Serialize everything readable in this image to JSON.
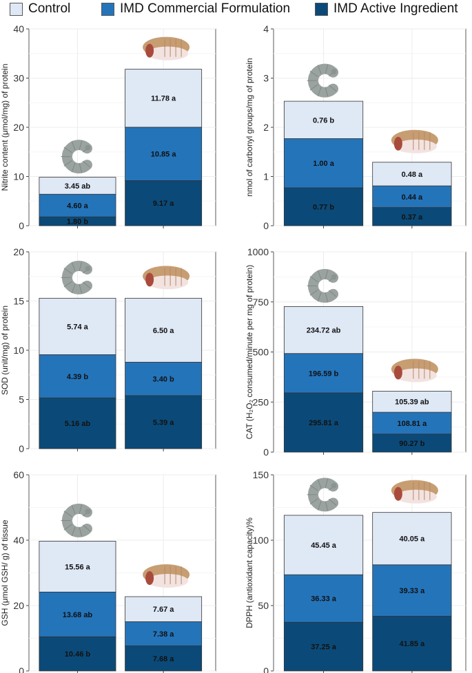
{
  "legend": {
    "items": [
      {
        "label": "Control",
        "color": "#dfe8f5"
      },
      {
        "label": "IMD Commercial Formulation",
        "color": "#2474ba"
      },
      {
        "label": "IMD Active Ingredient",
        "color": "#0b4a78"
      }
    ]
  },
  "chart_data": [
    {
      "type": "bar",
      "stacked": true,
      "ylabel": "Nitrite content (μmol/mg) of protein",
      "ylim": [
        0,
        40
      ],
      "yticks": [
        0,
        10,
        20,
        30,
        40
      ],
      "categories": [
        "larva",
        "pupa"
      ],
      "icons": [
        "larva-icon",
        "pupa-icon"
      ],
      "series": [
        {
          "name": "IMD Active Ingredient",
          "values": [
            1.8,
            9.17
          ],
          "labels": [
            "1.80 b",
            "9.17 a"
          ]
        },
        {
          "name": "IMD Commercial Formulation",
          "values": [
            4.6,
            10.85
          ],
          "labels": [
            "4.60 a",
            "10.85 a"
          ]
        },
        {
          "name": "Control",
          "values": [
            3.45,
            11.78
          ],
          "labels": [
            "3.45 ab",
            "11.78 a"
          ]
        }
      ]
    },
    {
      "type": "bar",
      "stacked": true,
      "ylabel": "nmol of carbonyl groups/mg of protein",
      "ylim": [
        0,
        4
      ],
      "yticks": [
        0,
        1,
        2,
        3,
        4
      ],
      "categories": [
        "larva",
        "pupa"
      ],
      "icons": [
        "larva-icon",
        "pupa-icon"
      ],
      "series": [
        {
          "name": "IMD Active Ingredient",
          "values": [
            0.77,
            0.37
          ],
          "labels": [
            "0.77 b",
            "0.37 a"
          ]
        },
        {
          "name": "IMD Commercial Formulation",
          "values": [
            1.0,
            0.44
          ],
          "labels": [
            "1.00 a",
            "0.44 a"
          ]
        },
        {
          "name": "Control",
          "values": [
            0.76,
            0.48
          ],
          "labels": [
            "0.76 b",
            "0.48 a"
          ]
        }
      ]
    },
    {
      "type": "bar",
      "stacked": true,
      "ylabel": "SOD (unit/mg) of protein",
      "ylim": [
        0,
        20
      ],
      "yticks": [
        0,
        5,
        10,
        15,
        20
      ],
      "categories": [
        "larva",
        "pupa"
      ],
      "icons": [
        "larva-icon",
        "pupa-icon"
      ],
      "series": [
        {
          "name": "IMD Active Ingredient",
          "values": [
            5.16,
            5.39
          ],
          "labels": [
            "5.16 ab",
            "5.39 a"
          ]
        },
        {
          "name": "IMD Commercial Formulation",
          "values": [
            4.39,
            3.4
          ],
          "labels": [
            "4.39 b",
            "3.40 b"
          ]
        },
        {
          "name": "Control",
          "values": [
            5.74,
            6.5
          ],
          "labels": [
            "5.74 a",
            "6.50 a"
          ]
        }
      ]
    },
    {
      "type": "bar",
      "stacked": true,
      "ylabel": "CAT (H₂O₂ consumed/minute per mg of protein)",
      "ylim": [
        0,
        1000
      ],
      "yticks": [
        0,
        250,
        500,
        750,
        1000
      ],
      "categories": [
        "larva",
        "pupa"
      ],
      "icons": [
        "larva-icon",
        "pupa-icon"
      ],
      "series": [
        {
          "name": "IMD Active Ingredient",
          "values": [
            295.81,
            90.27
          ],
          "labels": [
            "295.81 a",
            "90.27 b"
          ]
        },
        {
          "name": "IMD Commercial Formulation",
          "values": [
            196.59,
            108.81
          ],
          "labels": [
            "196.59 b",
            "108.81 a"
          ]
        },
        {
          "name": "Control",
          "values": [
            234.72,
            105.39
          ],
          "labels": [
            "234.72 ab",
            "105.39 ab"
          ]
        }
      ]
    },
    {
      "type": "bar",
      "stacked": true,
      "ylabel": "GSH (μmol GSH/ g) of tissue",
      "ylim": [
        0,
        60
      ],
      "yticks": [
        0,
        20,
        40,
        60
      ],
      "categories": [
        "larva",
        "pupa"
      ],
      "icons": [
        "larva-icon",
        "pupa-icon"
      ],
      "series": [
        {
          "name": "IMD Active Ingredient",
          "values": [
            10.46,
            7.68
          ],
          "labels": [
            "10.46 b",
            "7.68 a"
          ]
        },
        {
          "name": "IMD Commercial Formulation",
          "values": [
            13.68,
            7.38
          ],
          "labels": [
            "13.68 ab",
            "7.38 a"
          ]
        },
        {
          "name": "Control",
          "values": [
            15.56,
            7.67
          ],
          "labels": [
            "15.56 a",
            "7.67 a"
          ]
        }
      ]
    },
    {
      "type": "bar",
      "stacked": true,
      "ylabel": "DPPH (antioxidant capacity)%",
      "ylim": [
        0,
        150
      ],
      "yticks": [
        0,
        50,
        100,
        150
      ],
      "categories": [
        "larva",
        "pupa"
      ],
      "icons": [
        "larva-icon",
        "pupa-icon"
      ],
      "series": [
        {
          "name": "IMD Active Ingredient",
          "values": [
            37.25,
            41.85
          ],
          "labels": [
            "37.25 a",
            "41.85 a"
          ]
        },
        {
          "name": "IMD Commercial Formulation",
          "values": [
            36.33,
            39.33
          ],
          "labels": [
            "36.33 a",
            "39.33 a"
          ]
        },
        {
          "name": "Control",
          "values": [
            45.45,
            40.05
          ],
          "labels": [
            "45.45 a",
            "40.05 a"
          ]
        }
      ]
    }
  ]
}
